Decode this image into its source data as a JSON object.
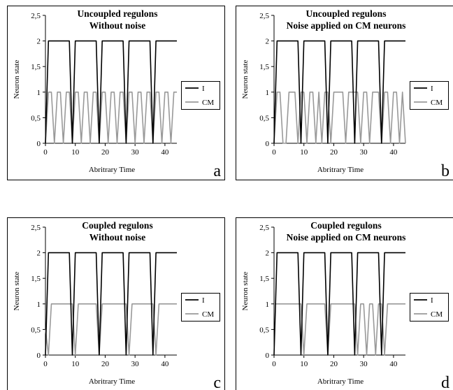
{
  "chart_data": [
    {
      "type": "line",
      "panel_letter": "a",
      "title_lines": [
        "Uncoupled regulons",
        "Without noise"
      ],
      "xlabel": "Abritrary Time",
      "ylabel": "Neuron state",
      "xlim": [
        0,
        44
      ],
      "ylim": [
        0,
        2.5
      ],
      "xticks": [
        "0",
        "10",
        "20",
        "30",
        "40"
      ],
      "yticks": [
        "0",
        "0,5",
        "1",
        "1,5",
        "2",
        "2,5"
      ],
      "grid": false,
      "legend_position": "right",
      "series": [
        {
          "name": "I",
          "color": "#000000",
          "x": [
            0,
            1,
            8,
            9,
            10,
            17,
            18,
            19,
            26,
            27,
            28,
            35,
            36,
            37,
            44
          ],
          "y": [
            0,
            2,
            2,
            0,
            2,
            2,
            0,
            2,
            2,
            0,
            2,
            2,
            0,
            2,
            2
          ]
        },
        {
          "name": "CM",
          "color": "#999999",
          "x": [
            0,
            1,
            2,
            3,
            4,
            5,
            6,
            7,
            8,
            9,
            10,
            11,
            12,
            13,
            14,
            15,
            16,
            17,
            18,
            19,
            20,
            21,
            22,
            23,
            24,
            25,
            26,
            27,
            28,
            29,
            30,
            31,
            32,
            33,
            34,
            35,
            36,
            37,
            38,
            39,
            40,
            41,
            42,
            43,
            44
          ],
          "y": [
            0,
            1,
            1,
            0,
            1,
            1,
            0,
            1,
            1,
            0,
            1,
            1,
            0,
            1,
            1,
            0,
            1,
            1,
            0,
            1,
            1,
            0,
            1,
            1,
            0,
            1,
            1,
            0,
            1,
            1,
            0,
            1,
            1,
            0,
            1,
            1,
            0,
            1,
            1,
            0,
            1,
            1,
            0,
            1,
            1
          ]
        }
      ]
    },
    {
      "type": "line",
      "panel_letter": "b",
      "title_lines": [
        "Uncoupled regulons",
        "Noise applied on CM neurons"
      ],
      "xlabel": "Abritrary Time",
      "ylabel": "Neuron state",
      "xlim": [
        0,
        44
      ],
      "ylim": [
        0,
        2.5
      ],
      "xticks": [
        "0",
        "10",
        "20",
        "30",
        "40"
      ],
      "yticks": [
        "0",
        "0,5",
        "1",
        "1,5",
        "2",
        "2,5"
      ],
      "grid": false,
      "legend_position": "right",
      "series": [
        {
          "name": "I",
          "color": "#000000",
          "x": [
            0,
            1,
            8,
            9,
            10,
            17,
            18,
            19,
            26,
            27,
            28,
            35,
            36,
            37,
            44
          ],
          "y": [
            0,
            2,
            2,
            0,
            2,
            2,
            0,
            2,
            2,
            0,
            2,
            2,
            0,
            2,
            2
          ]
        },
        {
          "name": "CM",
          "color": "#999999",
          "x": [
            0,
            1,
            2,
            3,
            4,
            5,
            6,
            7,
            8,
            9,
            10,
            11,
            12,
            13,
            14,
            15,
            16,
            17,
            18,
            19,
            20,
            21,
            22,
            23,
            24,
            25,
            26,
            27,
            28,
            29,
            30,
            31,
            32,
            33,
            34,
            35,
            36,
            37,
            38,
            39,
            40,
            41,
            42,
            43,
            44
          ],
          "y": [
            0,
            1,
            1,
            0,
            0,
            1,
            1,
            1,
            0,
            1,
            1,
            0,
            1,
            1,
            0,
            1,
            0,
            1,
            1,
            0,
            1,
            1,
            1,
            1,
            0,
            1,
            1,
            1,
            1,
            0,
            1,
            1,
            0,
            1,
            1,
            1,
            0,
            1,
            1,
            0,
            1,
            1,
            0,
            1,
            0
          ]
        }
      ]
    },
    {
      "type": "line",
      "panel_letter": "c",
      "title_lines": [
        "Coupled regulons",
        "Without noise"
      ],
      "xlabel": "Abritrary Time",
      "ylabel": "Neuron state",
      "xlim": [
        0,
        44
      ],
      "ylim": [
        0,
        2.5
      ],
      "xticks": [
        "0",
        "10",
        "20",
        "30",
        "40"
      ],
      "yticks": [
        "0",
        "0,5",
        "1",
        "1,5",
        "2",
        "2,5"
      ],
      "grid": false,
      "legend_position": "right",
      "series": [
        {
          "name": "I",
          "color": "#000000",
          "x": [
            0,
            1,
            8,
            9,
            10,
            17,
            18,
            19,
            26,
            27,
            28,
            35,
            36,
            37,
            44
          ],
          "y": [
            0,
            2,
            2,
            0,
            2,
            2,
            0,
            2,
            2,
            0,
            2,
            2,
            0,
            2,
            2
          ]
        },
        {
          "name": "CM",
          "color": "#999999",
          "x": [
            0,
            1,
            2,
            8,
            9,
            10,
            11,
            17,
            18,
            19,
            20,
            26,
            27,
            28,
            29,
            35,
            36,
            37,
            38,
            44
          ],
          "y": [
            0.5,
            0,
            1,
            1,
            1,
            0,
            1,
            1,
            0,
            1,
            1,
            1,
            1,
            0,
            1,
            1,
            1,
            0,
            1,
            1
          ]
        }
      ]
    },
    {
      "type": "line",
      "panel_letter": "d",
      "title_lines": [
        "Coupled regulons",
        "Noise applied on CM neurons"
      ],
      "xlabel": "Abritrary Time",
      "ylabel": "Neuron state",
      "xlim": [
        0,
        44
      ],
      "ylim": [
        0,
        2.5
      ],
      "xticks": [
        "0",
        "10",
        "20",
        "30",
        "40"
      ],
      "yticks": [
        "0",
        "0,5",
        "1",
        "1,5",
        "2",
        "2,5"
      ],
      "grid": false,
      "legend_position": "right",
      "series": [
        {
          "name": "I",
          "color": "#000000",
          "x": [
            0,
            1,
            8,
            9,
            10,
            17,
            18,
            19,
            26,
            27,
            28,
            35,
            36,
            37,
            44
          ],
          "y": [
            0,
            2,
            2,
            0,
            2,
            2,
            0,
            2,
            2,
            0,
            2,
            2,
            0,
            2,
            2
          ]
        },
        {
          "name": "CM",
          "color": "#999999",
          "x": [
            0,
            1,
            8,
            9,
            10,
            11,
            17,
            18,
            19,
            20,
            26,
            27,
            28,
            29,
            30,
            31,
            32,
            33,
            34,
            35,
            36,
            37,
            38,
            44
          ],
          "y": [
            1,
            1,
            1,
            1,
            0,
            1,
            1,
            0,
            1,
            1,
            1,
            1,
            0,
            1,
            1,
            0,
            1,
            1,
            0,
            1,
            1,
            0,
            1,
            1
          ]
        }
      ]
    }
  ]
}
